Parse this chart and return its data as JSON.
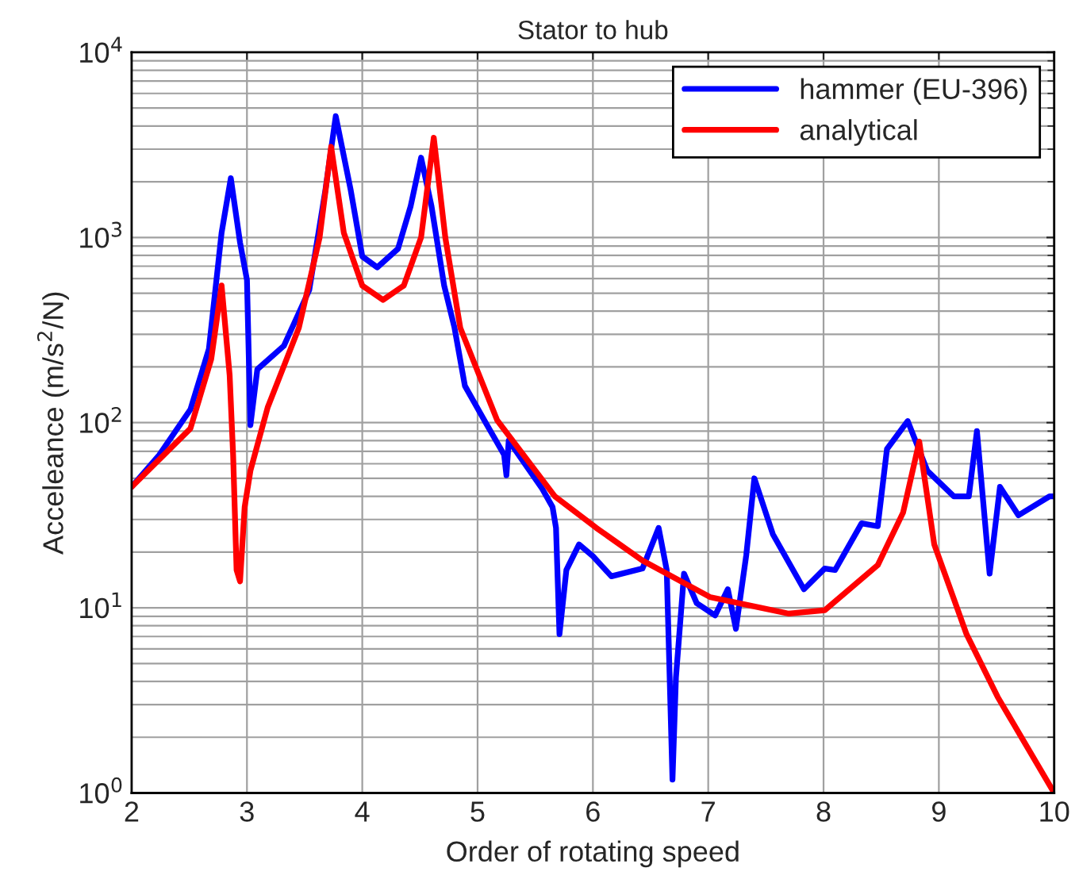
{
  "chart_data": {
    "type": "line",
    "title": "Stator to hub",
    "xlabel": "Order of rotating speed",
    "ylabel": "Acceleance (m/s$^{2}$/N)",
    "log": "y",
    "grid": true,
    "legend": "top right",
    "line_style": "solid",
    "marker": "none",
    "xlim": [
      2,
      10
    ],
    "xticks": [
      2,
      3,
      4,
      5,
      6,
      7,
      8,
      9,
      10
    ],
    "ylim": [
      1,
      10000
    ],
    "yticks": [
      {
        "value": 1,
        "label": "10$^{0}$"
      },
      {
        "value": 10,
        "label": "10$^{1}$"
      },
      {
        "value": 100,
        "label": "10$^{2}$"
      },
      {
        "value": 1000,
        "label": "10$^{3}$"
      },
      {
        "value": 10000,
        "label": "10$^{4}$"
      }
    ],
    "series": [
      {
        "name": "hammer (EU-396)",
        "color": "#0000ff",
        "x": [
          2.0,
          2.24,
          2.51,
          2.67,
          2.78,
          2.86,
          2.94,
          3.0,
          3.03,
          3.09,
          3.32,
          3.54,
          3.68,
          3.77,
          3.9,
          4.0,
          4.13,
          4.31,
          4.42,
          4.51,
          4.6,
          4.71,
          4.8,
          4.89,
          5.07,
          5.23,
          5.25,
          5.27,
          5.56,
          5.65,
          5.68,
          5.71,
          5.77,
          5.88,
          6.0,
          6.16,
          6.43,
          6.57,
          6.64,
          6.69,
          6.72,
          6.79,
          6.9,
          7.06,
          7.17,
          7.24,
          7.33,
          7.4,
          7.56,
          7.83,
          8.01,
          8.1,
          8.33,
          8.47,
          8.55,
          8.73,
          8.9,
          9.13,
          9.26,
          9.33,
          9.44,
          9.53,
          9.69,
          9.96,
          10.0
        ],
        "values": [
          45,
          67,
          118,
          250,
          1060,
          2090,
          940,
          590,
          97,
          194,
          260,
          520,
          1800,
          4520,
          1800,
          790,
          690,
          870,
          1480,
          2700,
          1480,
          550,
          325,
          158,
          100,
          67,
          52,
          80,
          44,
          35,
          27,
          7.2,
          16,
          22,
          19,
          14.8,
          16.3,
          27,
          16,
          1.18,
          4.2,
          15.3,
          10.6,
          9.1,
          12.6,
          7.7,
          19.3,
          50,
          25,
          12.6,
          16.3,
          16,
          28.6,
          27.6,
          72,
          102,
          55,
          40,
          40,
          90,
          15.3,
          45,
          31.6,
          40,
          40
        ]
      },
      {
        "name": "analytical",
        "color": "#ff0000",
        "x": [
          2.0,
          2.51,
          2.69,
          2.78,
          2.85,
          2.88,
          2.91,
          2.94,
          2.98,
          3.03,
          3.18,
          3.45,
          3.63,
          3.73,
          3.84,
          4.0,
          4.18,
          4.36,
          4.51,
          4.62,
          4.72,
          4.85,
          5.17,
          5.67,
          6.03,
          6.43,
          7.02,
          7.7,
          8.01,
          8.47,
          8.69,
          8.83,
          8.96,
          9.24,
          9.51,
          10.0
        ],
        "values": [
          45,
          93,
          220,
          550,
          180,
          67,
          16,
          13.9,
          35,
          55,
          121,
          325,
          1000,
          3090,
          1060,
          550,
          460,
          550,
          1000,
          3460,
          1000,
          325,
          103,
          40,
          27,
          18,
          11.4,
          9.3,
          9.7,
          17,
          32.7,
          79,
          22,
          7.2,
          3.3,
          1.0
        ]
      }
    ]
  }
}
